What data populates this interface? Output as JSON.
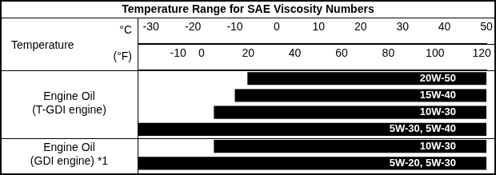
{
  "chart_data": {
    "type": "bar",
    "orientation": "horizontal",
    "title": "Temperature Range for SAE Viscosity Numbers",
    "xlabel": "Temperature",
    "xunit": "°C",
    "x2unit": "(°F)",
    "xlim": [
      -33,
      50
    ],
    "xticks": [
      -30,
      -20,
      -10,
      0,
      10,
      20,
      30,
      40,
      50
    ],
    "x2lim": [
      -27,
      122
    ],
    "x2ticks": [
      -10,
      0,
      20,
      40,
      60,
      80,
      100,
      120
    ],
    "color": "#000000",
    "grid": false,
    "tick_labels": "x",
    "groups": [
      {
        "label": [
          "Engine Oil",
          "(T-GDI engine)"
        ],
        "categories": [
          "20W-50",
          "15W-40",
          "10W-30",
          "5W-30, 5W-40"
        ],
        "values": [
          [
            -7,
            50
          ],
          [
            -10,
            50
          ],
          [
            -15,
            50
          ],
          [
            -33,
            50
          ]
        ]
      },
      {
        "label": [
          "Engine Oil",
          "(GDI engine) *1"
        ],
        "categories": [
          "10W-30",
          "5W-20, 5W-30"
        ],
        "values": [
          [
            -15,
            50
          ],
          [
            -33,
            50
          ]
        ]
      }
    ]
  }
}
